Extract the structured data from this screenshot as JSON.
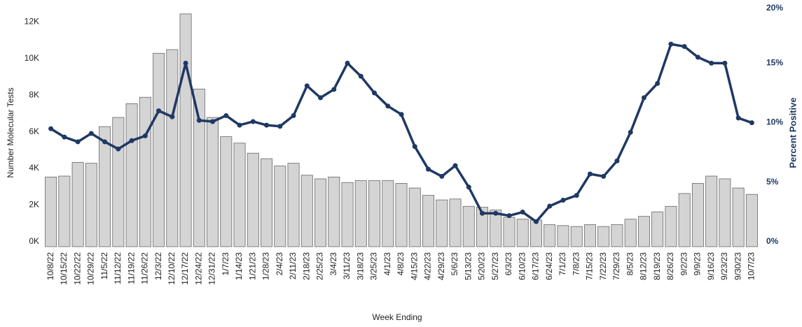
{
  "chart_data": {
    "type": "bar",
    "x_label": "Week Ending",
    "y_label": "Number Molecular Tests",
    "y2_label": "Percent Positive",
    "categories": [
      "10/8/22",
      "10/15/22",
      "10/22/22",
      "10/29/22",
      "11/5/22",
      "11/12/22",
      "11/19/22",
      "11/26/22",
      "12/3/22",
      "12/10/22",
      "12/17/22",
      "12/24/22",
      "12/31/22",
      "1/7/23",
      "1/14/23",
      "1/21/23",
      "1/28/23",
      "2/4/23",
      "2/11/23",
      "2/18/23",
      "2/25/23",
      "3/4/23",
      "3/11/23",
      "3/18/23",
      "3/25/23",
      "4/1/23",
      "4/8/23",
      "4/15/23",
      "4/22/23",
      "4/29/23",
      "5/6/23",
      "5/13/23",
      "5/20/23",
      "5/27/23",
      "6/3/23",
      "6/10/23",
      "6/17/23",
      "6/24/23",
      "7/1/23",
      "7/8/23",
      "7/15/23",
      "7/22/23",
      "7/29/23",
      "8/5/23",
      "8/12/23",
      "8/19/23",
      "8/26/23",
      "9/2/23",
      "9/9/23",
      "9/16/23",
      "9/23/23",
      "9/30/23",
      "10/7/23"
    ],
    "series": [
      {
        "type": "bar",
        "axis": "y",
        "color": "#d4d4d4",
        "values": [
          3800,
          3850,
          4600,
          4550,
          6550,
          7050,
          7800,
          8150,
          10550,
          10750,
          12700,
          8600,
          7050,
          6000,
          5650,
          5100,
          4800,
          4400,
          4550,
          3900,
          3700,
          3800,
          3500,
          3600,
          3600,
          3600,
          3450,
          3200,
          2800,
          2550,
          2600,
          2200,
          2150,
          2000,
          1600,
          1500,
          1450,
          1200,
          1150,
          1100,
          1200,
          1100,
          1200,
          1500,
          1650,
          1900,
          2200,
          2900,
          3450,
          3850,
          3700,
          3200,
          2850
        ]
      },
      {
        "type": "line",
        "axis": "y2",
        "color": "#1f3864",
        "values": [
          9.9,
          9.2,
          8.8,
          9.5,
          8.8,
          8.2,
          8.9,
          9.3,
          11.4,
          10.9,
          15.4,
          10.6,
          10.5,
          11.0,
          10.2,
          10.5,
          10.2,
          10.1,
          11.0,
          13.5,
          12.5,
          13.2,
          15.4,
          14.3,
          12.9,
          11.8,
          11.1,
          8.4,
          6.5,
          5.9,
          6.8,
          5.0,
          2.8,
          2.8,
          2.6,
          2.9,
          2.1,
          3.4,
          3.9,
          4.3,
          6.1,
          5.9,
          7.2,
          9.6,
          12.5,
          13.7,
          17.0,
          16.8,
          15.9,
          15.4,
          15.4,
          10.8,
          10.4
        ]
      }
    ],
    "ylim": [
      0,
      13000
    ],
    "yticks": [
      {
        "value": 0,
        "label": "0K"
      },
      {
        "value": 2000,
        "label": "2K"
      },
      {
        "value": 4000,
        "label": "4K"
      },
      {
        "value": 6000,
        "label": "6K"
      },
      {
        "value": 8000,
        "label": "8K"
      },
      {
        "value": 10000,
        "label": "10K"
      },
      {
        "value": 12000,
        "label": "12K"
      }
    ],
    "y2lim": [
      0,
      20
    ],
    "y2ticks": [
      {
        "value": 0,
        "label": "0%"
      },
      {
        "value": 5,
        "label": "5%"
      },
      {
        "value": 10,
        "label": "10%"
      },
      {
        "value": 15,
        "label": "15%"
      },
      {
        "value": 20,
        "label": "20%"
      }
    ]
  }
}
